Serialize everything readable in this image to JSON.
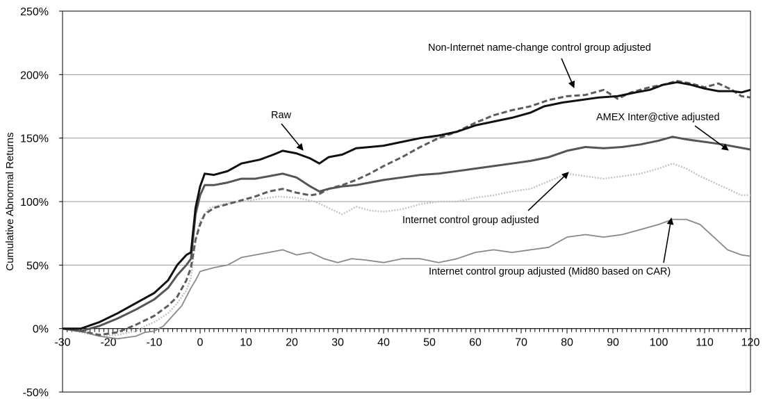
{
  "chart_data": {
    "type": "line",
    "title": "",
    "xlabel": "",
    "ylabel": "Cumulative Abnormal Returns",
    "xlim": [
      -30,
      120
    ],
    "ylim": [
      -50,
      250
    ],
    "x_ticks": [
      "-30",
      "-20",
      "-10",
      "0",
      "10",
      "20",
      "30",
      "40",
      "50",
      "60",
      "70",
      "80",
      "90",
      "100",
      "110",
      "120"
    ],
    "y_ticks": [
      "-50%",
      "0%",
      "50%",
      "100%",
      "150%",
      "200%",
      "250%"
    ],
    "grid": "horizontal",
    "series": [
      {
        "name": "Raw",
        "color": "#111111",
        "style": "solid-thick",
        "points": [
          [
            -30,
            0
          ],
          [
            -26,
            0
          ],
          [
            -22,
            5
          ],
          [
            -18,
            12
          ],
          [
            -14,
            20
          ],
          [
            -10,
            28
          ],
          [
            -7,
            38
          ],
          [
            -5,
            50
          ],
          [
            -3,
            58
          ],
          [
            -2,
            60
          ],
          [
            -1,
            95
          ],
          [
            0,
            112
          ],
          [
            1,
            122
          ],
          [
            3,
            121
          ],
          [
            6,
            124
          ],
          [
            9,
            130
          ],
          [
            13,
            133
          ],
          [
            16,
            137
          ],
          [
            18,
            140
          ],
          [
            21,
            138
          ],
          [
            24,
            134
          ],
          [
            26,
            130
          ],
          [
            28,
            135
          ],
          [
            31,
            137
          ],
          [
            34,
            142
          ],
          [
            37,
            143
          ],
          [
            40,
            144
          ],
          [
            44,
            147
          ],
          [
            48,
            150
          ],
          [
            52,
            152
          ],
          [
            56,
            155
          ],
          [
            60,
            160
          ],
          [
            64,
            163
          ],
          [
            68,
            166
          ],
          [
            72,
            170
          ],
          [
            75,
            175
          ],
          [
            79,
            178
          ],
          [
            83,
            180
          ],
          [
            87,
            182
          ],
          [
            91,
            183
          ],
          [
            95,
            186
          ],
          [
            98,
            188
          ],
          [
            101,
            192
          ],
          [
            104,
            194
          ],
          [
            107,
            192
          ],
          [
            110,
            189
          ],
          [
            113,
            187
          ],
          [
            116,
            187
          ],
          [
            118,
            186
          ],
          [
            120,
            188
          ]
        ]
      },
      {
        "name": "AMEX Inter@ctive adjusted",
        "color": "#555555",
        "style": "solid-thick",
        "points": [
          [
            -30,
            0
          ],
          [
            -26,
            -2
          ],
          [
            -22,
            2
          ],
          [
            -18,
            8
          ],
          [
            -14,
            15
          ],
          [
            -10,
            23
          ],
          [
            -7,
            32
          ],
          [
            -5,
            42
          ],
          [
            -3,
            50
          ],
          [
            -2,
            55
          ],
          [
            -1,
            90
          ],
          [
            0,
            105
          ],
          [
            1,
            113
          ],
          [
            3,
            113
          ],
          [
            6,
            115
          ],
          [
            9,
            118
          ],
          [
            12,
            118
          ],
          [
            15,
            120
          ],
          [
            18,
            122
          ],
          [
            21,
            119
          ],
          [
            24,
            112
          ],
          [
            26,
            108
          ],
          [
            28,
            110
          ],
          [
            31,
            112
          ],
          [
            34,
            113
          ],
          [
            37,
            115
          ],
          [
            40,
            117
          ],
          [
            44,
            119
          ],
          [
            48,
            121
          ],
          [
            52,
            122
          ],
          [
            56,
            124
          ],
          [
            60,
            126
          ],
          [
            64,
            128
          ],
          [
            68,
            130
          ],
          [
            72,
            132
          ],
          [
            76,
            135
          ],
          [
            80,
            140
          ],
          [
            84,
            143
          ],
          [
            88,
            142
          ],
          [
            92,
            143
          ],
          [
            96,
            145
          ],
          [
            100,
            148
          ],
          [
            103,
            151
          ],
          [
            106,
            149
          ],
          [
            110,
            147
          ],
          [
            114,
            145
          ],
          [
            117,
            143
          ],
          [
            120,
            141
          ]
        ]
      },
      {
        "name": "Non-Internet name-change control group adjusted",
        "color": "#5c5c5c",
        "style": "dashed",
        "points": [
          [
            -30,
            0
          ],
          [
            -26,
            -2
          ],
          [
            -22,
            -5
          ],
          [
            -18,
            -3
          ],
          [
            -14,
            3
          ],
          [
            -10,
            10
          ],
          [
            -7,
            18
          ],
          [
            -5,
            25
          ],
          [
            -3,
            38
          ],
          [
            -2,
            48
          ],
          [
            -1,
            70
          ],
          [
            0,
            82
          ],
          [
            1,
            90
          ],
          [
            3,
            95
          ],
          [
            6,
            98
          ],
          [
            9,
            101
          ],
          [
            12,
            104
          ],
          [
            15,
            108
          ],
          [
            18,
            110
          ],
          [
            21,
            107
          ],
          [
            24,
            105
          ],
          [
            26,
            106
          ],
          [
            28,
            110
          ],
          [
            31,
            113
          ],
          [
            34,
            117
          ],
          [
            37,
            122
          ],
          [
            40,
            128
          ],
          [
            44,
            135
          ],
          [
            48,
            143
          ],
          [
            52,
            150
          ],
          [
            56,
            155
          ],
          [
            60,
            162
          ],
          [
            64,
            168
          ],
          [
            68,
            172
          ],
          [
            72,
            175
          ],
          [
            76,
            180
          ],
          [
            80,
            183
          ],
          [
            84,
            184
          ],
          [
            88,
            188
          ],
          [
            91,
            181
          ],
          [
            94,
            186
          ],
          [
            98,
            190
          ],
          [
            101,
            192
          ],
          [
            104,
            195
          ],
          [
            107,
            193
          ],
          [
            110,
            190
          ],
          [
            113,
            193
          ],
          [
            116,
            188
          ],
          [
            118,
            183
          ],
          [
            120,
            182
          ]
        ]
      },
      {
        "name": "Internet control group adjusted",
        "color": "#c4c4c4",
        "style": "dotted",
        "points": [
          [
            -30,
            0
          ],
          [
            -26,
            -3
          ],
          [
            -22,
            -6
          ],
          [
            -18,
            -5
          ],
          [
            -14,
            -2
          ],
          [
            -12,
            2
          ],
          [
            -10,
            5
          ],
          [
            -7,
            12
          ],
          [
            -5,
            20
          ],
          [
            -3,
            30
          ],
          [
            -2,
            40
          ],
          [
            -1,
            70
          ],
          [
            0,
            85
          ],
          [
            2,
            95
          ],
          [
            5,
            98
          ],
          [
            9,
            100
          ],
          [
            13,
            102
          ],
          [
            17,
            104
          ],
          [
            21,
            103
          ],
          [
            25,
            100
          ],
          [
            28,
            95
          ],
          [
            31,
            90
          ],
          [
            34,
            96
          ],
          [
            37,
            93
          ],
          [
            40,
            92
          ],
          [
            44,
            94
          ],
          [
            48,
            98
          ],
          [
            52,
            100
          ],
          [
            56,
            100
          ],
          [
            60,
            103
          ],
          [
            64,
            105
          ],
          [
            68,
            108
          ],
          [
            72,
            110
          ],
          [
            76,
            116
          ],
          [
            80,
            122
          ],
          [
            84,
            120
          ],
          [
            88,
            118
          ],
          [
            92,
            120
          ],
          [
            96,
            122
          ],
          [
            100,
            126
          ],
          [
            103,
            130
          ],
          [
            106,
            126
          ],
          [
            109,
            120
          ],
          [
            112,
            115
          ],
          [
            115,
            110
          ],
          [
            118,
            105
          ],
          [
            120,
            105
          ]
        ]
      },
      {
        "name": "Internet control group adjusted (Mid80 based on CAR)",
        "color": "#888888",
        "style": "solid-thin",
        "points": [
          [
            -30,
            0
          ],
          [
            -26,
            -2
          ],
          [
            -22,
            -6
          ],
          [
            -18,
            -8
          ],
          [
            -14,
            -6
          ],
          [
            -12,
            -3
          ],
          [
            -10,
            -2
          ],
          [
            -8,
            2
          ],
          [
            -6,
            10
          ],
          [
            -4,
            18
          ],
          [
            -3,
            25
          ],
          [
            -2,
            32
          ],
          [
            -1,
            38
          ],
          [
            0,
            45
          ],
          [
            3,
            48
          ],
          [
            6,
            50
          ],
          [
            9,
            56
          ],
          [
            12,
            58
          ],
          [
            15,
            60
          ],
          [
            18,
            62
          ],
          [
            21,
            58
          ],
          [
            24,
            60
          ],
          [
            27,
            55
          ],
          [
            30,
            52
          ],
          [
            33,
            55
          ],
          [
            36,
            54
          ],
          [
            40,
            52
          ],
          [
            44,
            55
          ],
          [
            48,
            55
          ],
          [
            52,
            52
          ],
          [
            56,
            55
          ],
          [
            60,
            60
          ],
          [
            64,
            62
          ],
          [
            68,
            60
          ],
          [
            72,
            62
          ],
          [
            76,
            64
          ],
          [
            80,
            72
          ],
          [
            84,
            74
          ],
          [
            88,
            72
          ],
          [
            92,
            74
          ],
          [
            96,
            78
          ],
          [
            100,
            82
          ],
          [
            103,
            86
          ],
          [
            106,
            86
          ],
          [
            109,
            82
          ],
          [
            112,
            72
          ],
          [
            115,
            62
          ],
          [
            118,
            58
          ],
          [
            120,
            57
          ]
        ]
      }
    ],
    "annotations": [
      {
        "text": "Raw",
        "series": "Raw",
        "x": 24,
        "y": 133
      },
      {
        "text": "Non-Internet name-change control group adjusted",
        "series": "Non-Internet name-change control group adjusted",
        "x": 85,
        "y": 183
      },
      {
        "text": "AMEX Inter@ctive adjusted",
        "series": "AMEX Inter@ctive adjusted",
        "x": 118,
        "y": 142
      },
      {
        "text": "Internet control group adjusted",
        "series": "Internet control group adjusted",
        "x": 81,
        "y": 122
      },
      {
        "text": "Internet control group adjusted (Mid80 based on CAR)",
        "series": "Internet control group adjusted (Mid80 based on CAR)",
        "x": 102,
        "y": 86
      }
    ]
  }
}
